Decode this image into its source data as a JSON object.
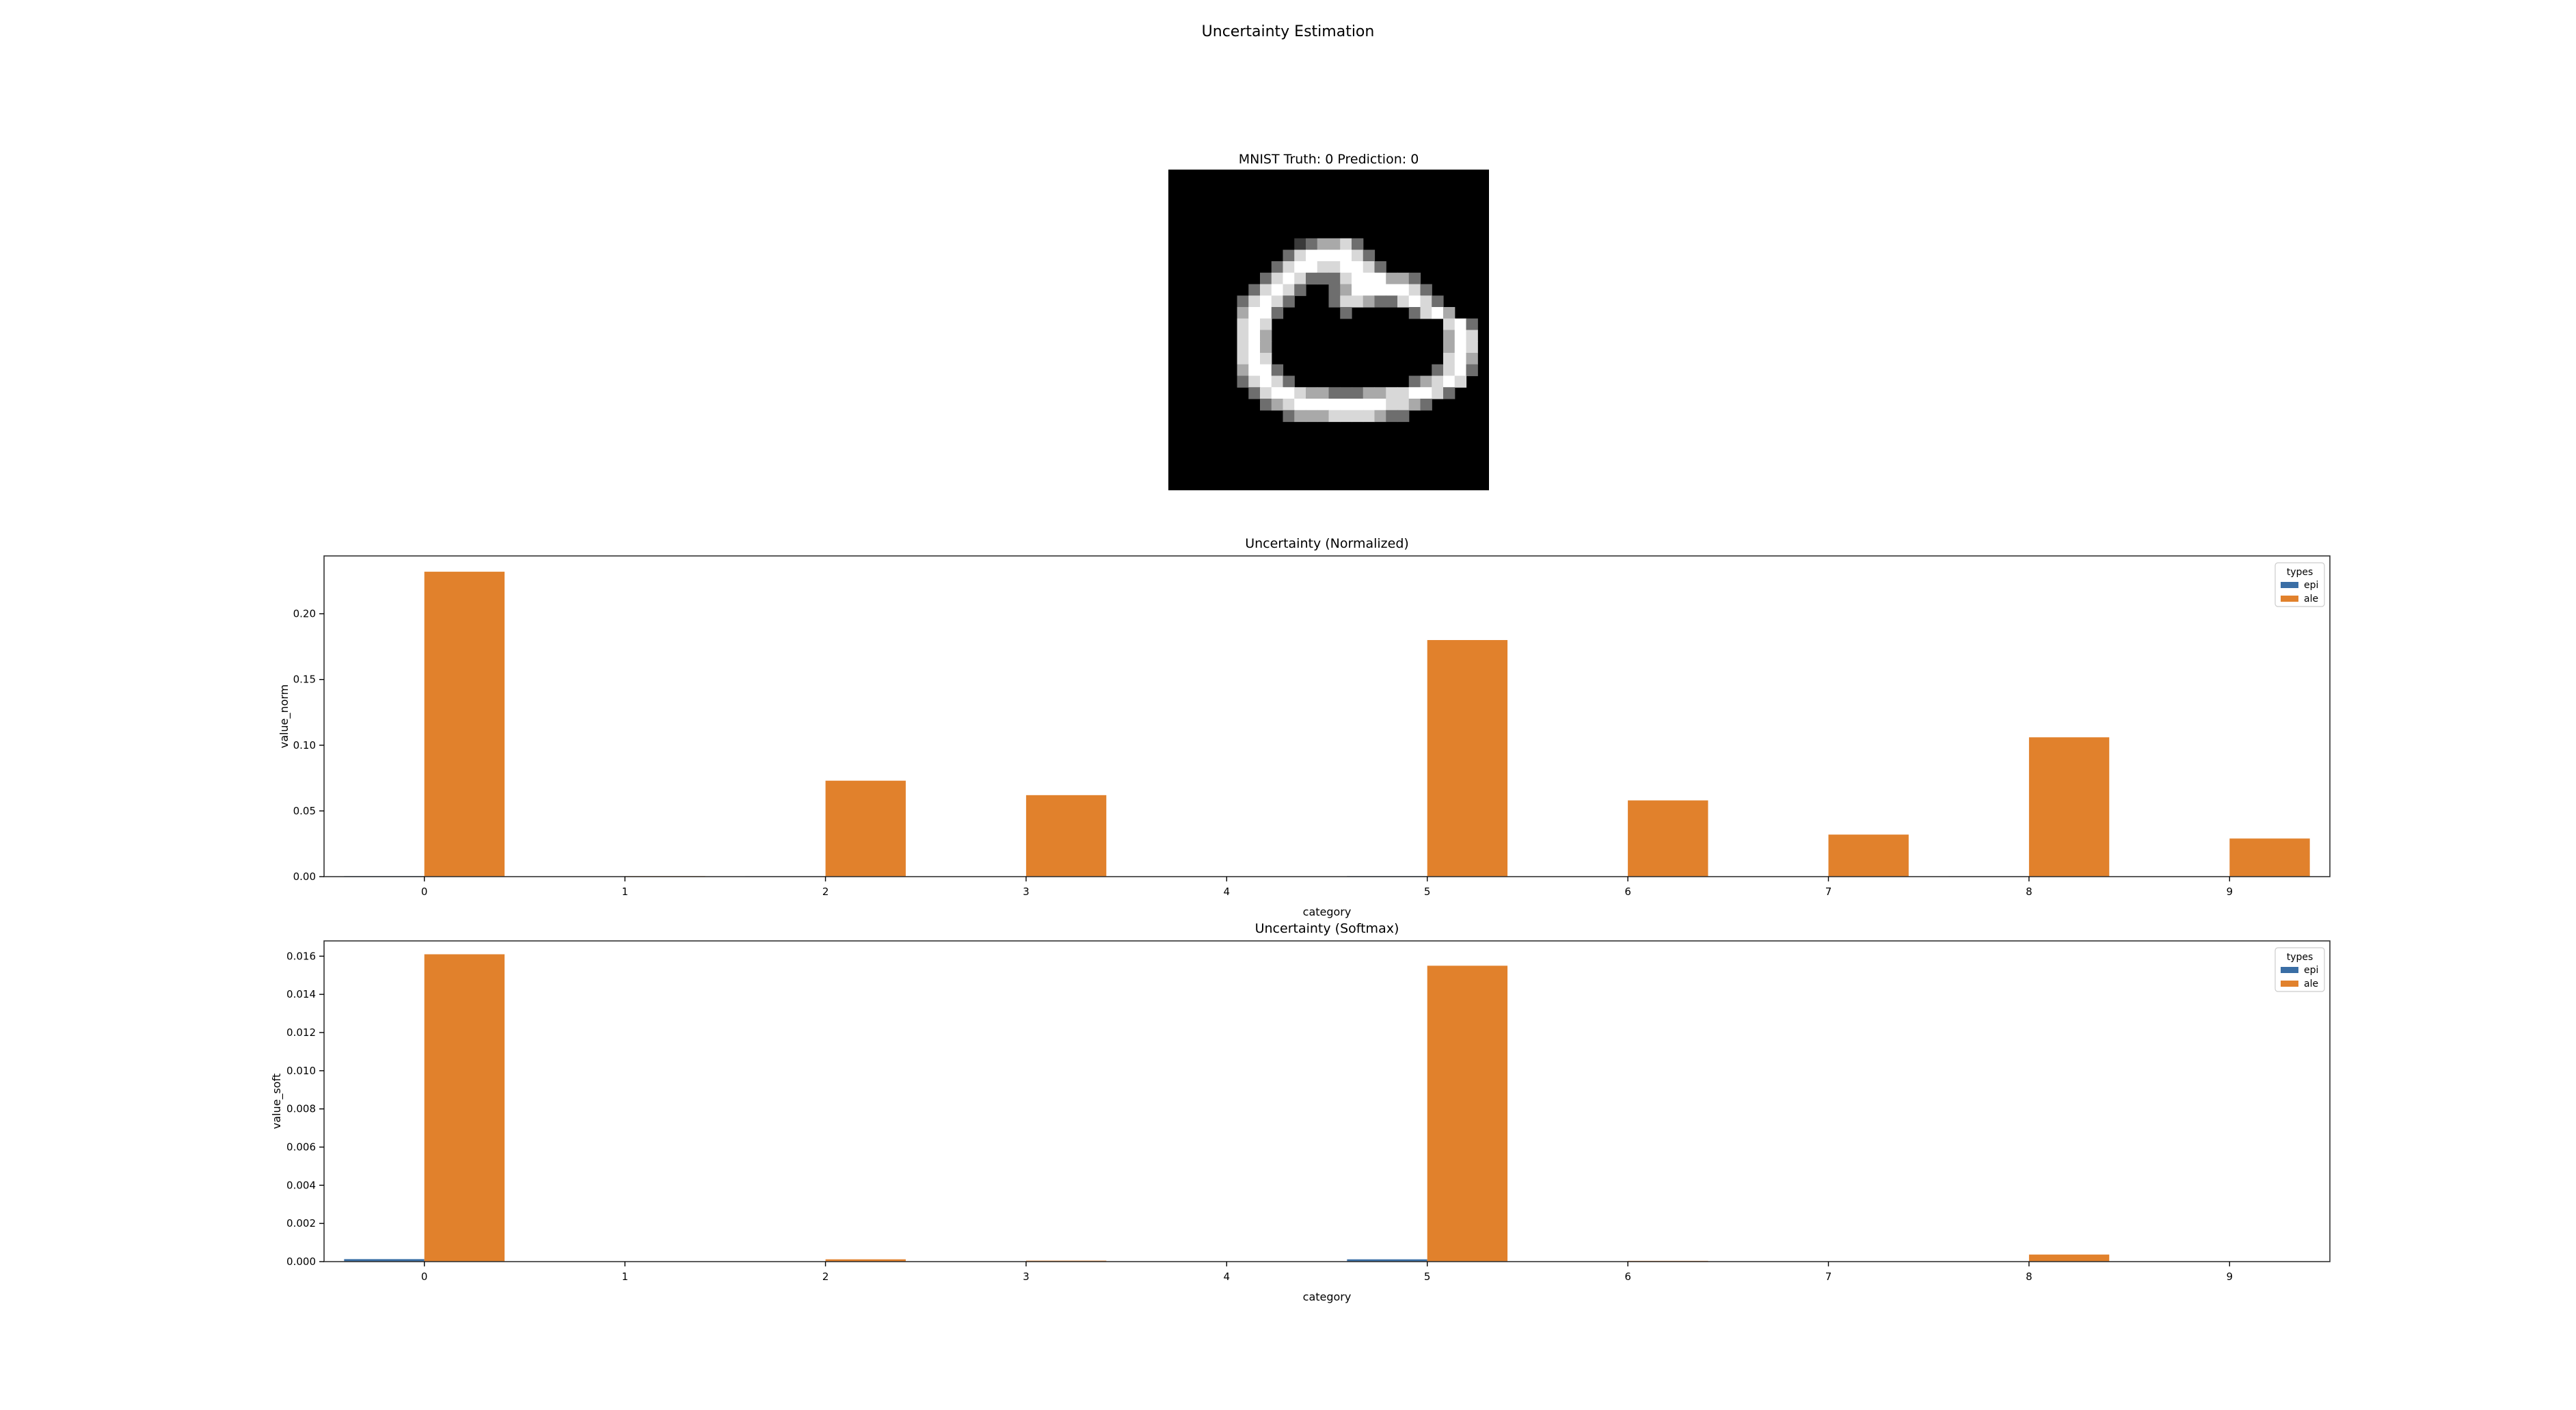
{
  "figure": {
    "suptitle": "Uncertainty Estimation",
    "image_title": "MNIST Truth: 0 Prediction: 0"
  },
  "colors": {
    "epi": "#3a6ea5",
    "ale": "#e1812c",
    "axes": "#333333"
  },
  "mnist": {
    "digit": "0",
    "rows": [
      "............................",
      "............................",
      "............................",
      "............................",
      "............................",
      "............................",
      "...........,+**#+...........",
      "..........+#@@@@#+..........",
      ".........+#@@##@@#+.........",
      "........+#@#+++#@@@**+......",
      ".......+#@#+..+*@@@@@#+.....",
      "......+#@#+...+##*++#@#+....",
      "......*@@+.....+.....+#@*...",
      "......#@#...............#@+..",
      "......#@*...............*@#..",
      "......#@*...............*@#..",
      "......#@#...............#@*..",
      "......*@@+.............+#@+..",
      "......+#@#+..........+*#@#...",
      ".......+#@@#**+++**##@@#+....",
      "........+*#@@@@@@@@##*+......",
      "..........+***####*++........",
      "............................",
      "............................",
      "............................",
      "............................",
      "............................",
      "............................"
    ]
  },
  "chart_data": [
    {
      "type": "bar",
      "title": "Uncertainty (Normalized)",
      "xlabel": "category",
      "ylabel": "value_norm",
      "categories": [
        "0",
        "1",
        "2",
        "3",
        "4",
        "5",
        "6",
        "7",
        "8",
        "9"
      ],
      "ylim": [
        0,
        0.244
      ],
      "yticks": [
        "0.00",
        "0.05",
        "0.10",
        "0.15",
        "0.20"
      ],
      "series": [
        {
          "name": "epi",
          "values": [
            0.0004,
            0.0,
            0.0003,
            0.0,
            0.0,
            0.0004,
            0.0002,
            0.0,
            0.0003,
            0.0
          ]
        },
        {
          "name": "ale",
          "values": [
            0.232,
            0.0004,
            0.073,
            0.062,
            0.0,
            0.18,
            0.058,
            0.032,
            0.106,
            0.029
          ]
        }
      ],
      "legend": {
        "title": "types",
        "position": "top-right"
      },
      "grid": false
    },
    {
      "type": "bar",
      "title": "Uncertainty (Softmax)",
      "xlabel": "category",
      "ylabel": "value_soft",
      "categories": [
        "0",
        "1",
        "2",
        "3",
        "4",
        "5",
        "6",
        "7",
        "8",
        "9"
      ],
      "ylim": [
        0,
        0.0168
      ],
      "yticks": [
        "0.000",
        "0.002",
        "0.004",
        "0.006",
        "0.008",
        "0.010",
        "0.012",
        "0.014",
        "0.016"
      ],
      "series": [
        {
          "name": "epi",
          "values": [
            0.00013,
            0.0,
            1e-05,
            0.0,
            0.0,
            0.00012,
            0.0,
            0.0,
            1e-05,
            0.0
          ]
        },
        {
          "name": "ale",
          "values": [
            0.0161,
            0.0,
            0.00012,
            5e-05,
            0.0,
            0.0155,
            4e-05,
            0.0,
            0.00037,
            0.0
          ]
        }
      ],
      "legend": {
        "title": "types",
        "position": "top-right"
      },
      "grid": false
    }
  ]
}
